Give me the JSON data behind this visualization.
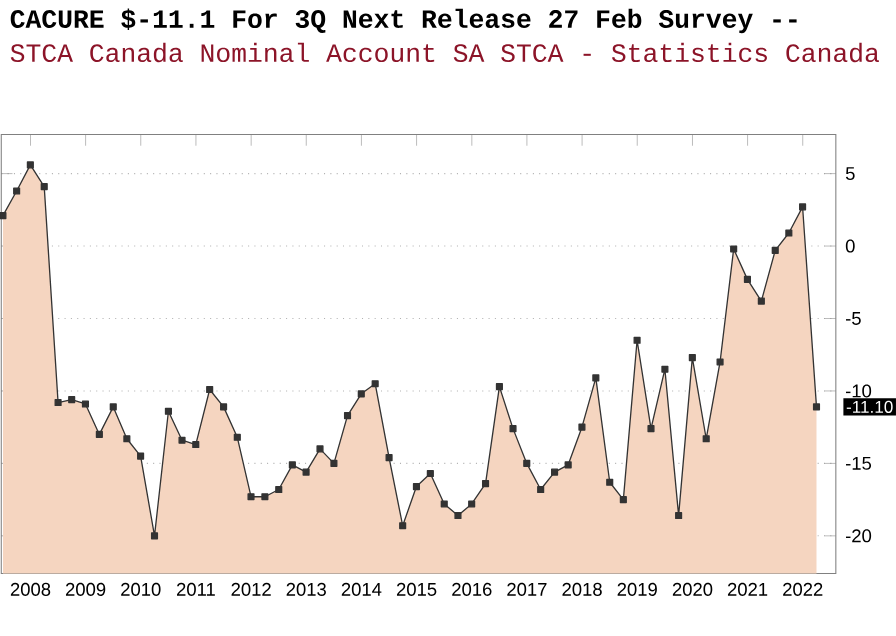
{
  "chart_data": {
    "type": "area",
    "title": "CACURE $-11.1 For 3Q  Next Release 27 Feb  Survey --",
    "subtitle": "STCA Canada Nominal Account SA  STCA - Statistics Canada",
    "x": [
      "2007-12-31",
      "2008-03-31",
      "2008-06-30",
      "2008-09-30",
      "2008-12-31",
      "2009-03-31",
      "2009-06-30",
      "2009-09-30",
      "2009-12-31",
      "2010-03-31",
      "2010-06-30",
      "2010-09-30",
      "2010-12-31",
      "2011-03-31",
      "2011-06-30",
      "2011-09-30",
      "2011-12-31",
      "2012-03-31",
      "2012-06-30",
      "2012-09-30",
      "2012-12-31",
      "2013-03-31",
      "2013-06-30",
      "2013-09-30",
      "2013-12-31",
      "2014-03-31",
      "2014-06-30",
      "2014-09-30",
      "2014-12-31",
      "2015-03-31",
      "2015-06-30",
      "2015-09-30",
      "2015-12-31",
      "2016-03-31",
      "2016-06-30",
      "2016-09-30",
      "2016-12-31",
      "2017-03-31",
      "2017-06-30",
      "2017-09-30",
      "2017-12-31",
      "2018-03-31",
      "2018-06-30",
      "2018-09-30",
      "2018-12-31",
      "2019-03-31",
      "2019-06-30",
      "2019-09-30",
      "2019-12-31",
      "2020-03-31",
      "2020-06-30",
      "2020-09-30",
      "2020-12-31",
      "2021-03-31",
      "2021-06-30",
      "2021-09-30",
      "2021-12-31",
      "2022-03-31",
      "2022-06-30",
      "2022-09-30"
    ],
    "series": [
      {
        "color": "#f5d5c0",
        "values": [
          2.1,
          3.8,
          5.6,
          4.1,
          -10.8,
          -10.6,
          -10.9,
          -13.0,
          -11.1,
          -13.3,
          -14.5,
          -20.0,
          -11.4,
          -13.4,
          -13.7,
          -9.9,
          -11.1,
          -13.2,
          -17.3,
          -17.3,
          -16.8,
          -15.1,
          -15.6,
          -14.0,
          -15.0,
          -11.7,
          -10.2,
          -9.5,
          -14.6,
          -19.3,
          -16.6,
          -15.7,
          -17.8,
          -18.6,
          -17.8,
          -16.4,
          -9.7,
          -12.6,
          -15.0,
          -16.8,
          -15.6,
          -15.1,
          -12.5,
          -9.1,
          -16.3,
          -17.5,
          -6.5,
          -12.6,
          -8.5,
          -18.6,
          -7.7,
          -13.3,
          -8.0,
          -0.2,
          -2.3,
          -3.8,
          -0.3,
          0.9,
          2.7,
          -11.1
        ]
      }
    ],
    "xlim": [
      "2007-12-20",
      "2023-02-05"
    ],
    "xticks": [
      {
        "value": "2008-07-01",
        "label": "2008"
      },
      {
        "value": "2009-07-01",
        "label": "2009"
      },
      {
        "value": "2010-07-01",
        "label": "2010"
      },
      {
        "value": "2011-07-01",
        "label": "2011"
      },
      {
        "value": "2012-07-01",
        "label": "2012"
      },
      {
        "value": "2013-07-01",
        "label": "2013"
      },
      {
        "value": "2014-07-01",
        "label": "2014"
      },
      {
        "value": "2015-07-01",
        "label": "2015"
      },
      {
        "value": "2016-07-01",
        "label": "2016"
      },
      {
        "value": "2017-07-01",
        "label": "2017"
      },
      {
        "value": "2018-07-01",
        "label": "2018"
      },
      {
        "value": "2019-07-01",
        "label": "2019"
      },
      {
        "value": "2020-07-01",
        "label": "2020"
      },
      {
        "value": "2021-07-01",
        "label": "2021"
      },
      {
        "value": "2022-07-01",
        "label": "2022"
      }
    ],
    "ylim": [
      -22.6,
      7.7
    ],
    "yticks": [
      5,
      0,
      -5,
      -10,
      -15,
      -20
    ],
    "grid": "y",
    "marker": "square",
    "line_style": "solid",
    "annotations": [
      {
        "text": "-11.10",
        "x": "2022-09-30",
        "y": -11.1
      }
    ]
  }
}
